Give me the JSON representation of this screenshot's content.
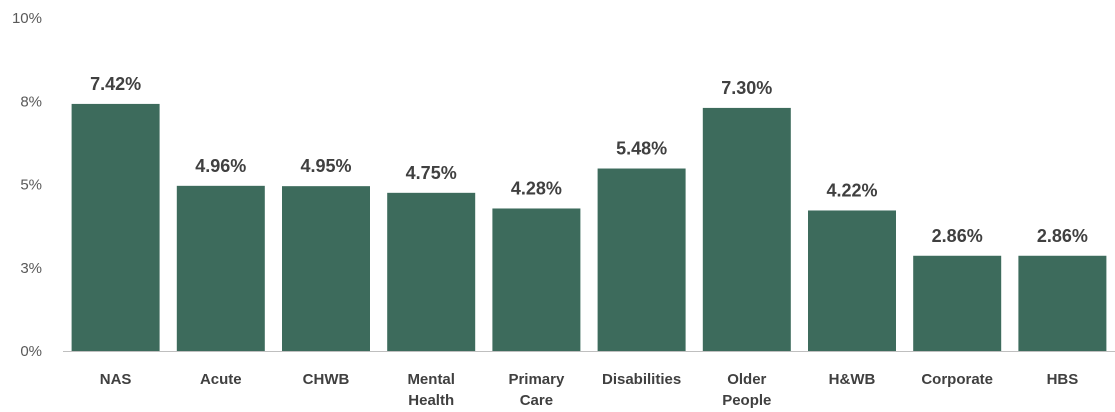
{
  "chart_data": {
    "type": "bar",
    "categories": [
      [
        "NAS"
      ],
      [
        "Acute"
      ],
      [
        "CHWB"
      ],
      [
        "Mental",
        "Health"
      ],
      [
        "Primary",
        "Care"
      ],
      [
        "Disabilities"
      ],
      [
        "Older",
        "People"
      ],
      [
        "H&WB"
      ],
      [
        "Corporate"
      ],
      [
        "HBS"
      ]
    ],
    "values": [
      7.42,
      4.96,
      4.95,
      4.75,
      4.28,
      5.48,
      7.3,
      4.22,
      2.86,
      2.86
    ],
    "data_labels": [
      "7.42%",
      "4.96%",
      "4.95%",
      "4.75%",
      "4.28%",
      "5.48%",
      "7.30%",
      "4.22%",
      "2.86%",
      "2.86%"
    ],
    "y_ticks": [
      {
        "value": 0,
        "label": "0%"
      },
      {
        "value": 2.5,
        "label": "3%"
      },
      {
        "value": 5,
        "label": "5%"
      },
      {
        "value": 7.5,
        "label": "8%"
      },
      {
        "value": 10,
        "label": "10%"
      }
    ],
    "ylim": [
      0,
      10
    ],
    "grid": false,
    "legend": "none",
    "bar_color": "#3d6b5c",
    "axis_color": "#bfbfbf"
  }
}
